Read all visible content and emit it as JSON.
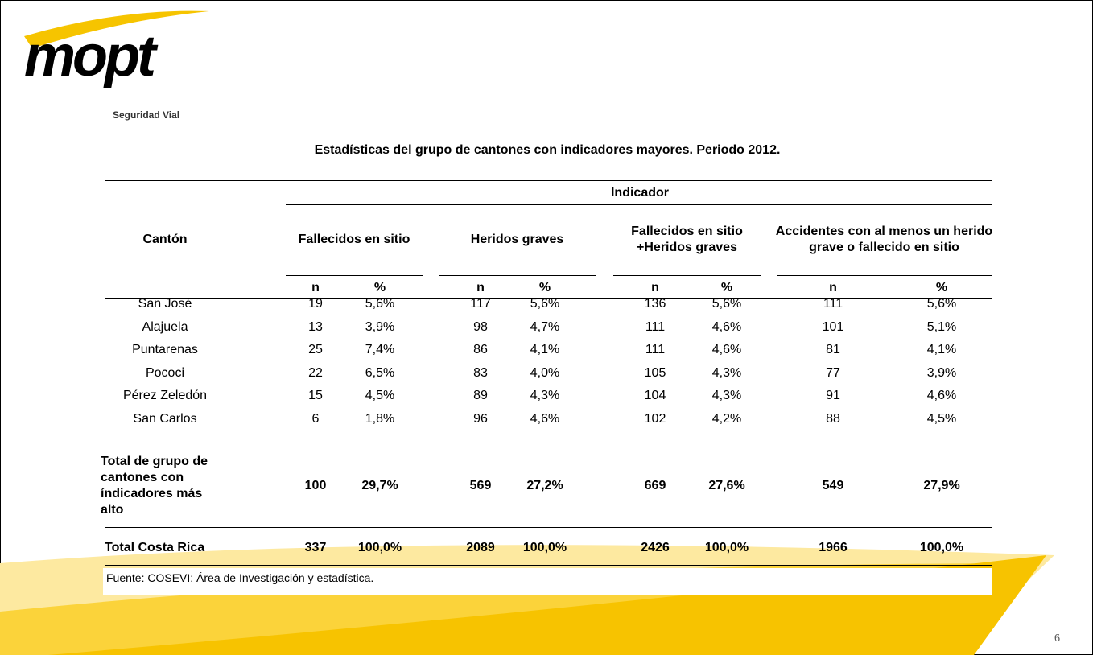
{
  "header": {
    "logo": "mopt",
    "subtitle": "Seguridad Vial"
  },
  "title": "Estadísticas del grupo de cantones con indicadores mayores. Periodo 2012.",
  "table": {
    "row_header": "Cantón",
    "group_header": "Indicador",
    "columns": [
      "Fallecidos en sitio",
      "Heridos graves",
      "Fallecidos en sitio +Heridos graves",
      "Accidentes con al menos un herido grave o fallecido en sitio"
    ],
    "subheaders": [
      "n",
      "%"
    ],
    "rows": [
      [
        "San José",
        "19",
        "5,6%",
        "117",
        "5,6%",
        "136",
        "5,6%",
        "111",
        "5,6%"
      ],
      [
        "Alajuela",
        "13",
        "3,9%",
        "98",
        "4,7%",
        "111",
        "4,6%",
        "101",
        "5,1%"
      ],
      [
        "Puntarenas",
        "25",
        "7,4%",
        "86",
        "4,1%",
        "111",
        "4,6%",
        "81",
        "4,1%"
      ],
      [
        "Pococi",
        "22",
        "6,5%",
        "83",
        "4,0%",
        "105",
        "4,3%",
        "77",
        "3,9%"
      ],
      [
        "Pérez Zeledón",
        "15",
        "4,5%",
        "89",
        "4,3%",
        "104",
        "4,3%",
        "91",
        "4,6%"
      ],
      [
        "San Carlos",
        "6",
        "1,8%",
        "96",
        "4,6%",
        "102",
        "4,2%",
        "88",
        "4,5%"
      ]
    ],
    "group_total": [
      "Total de grupo de cantones con índicadores más alto",
      "100",
      "29,7%",
      "569",
      "27,2%",
      "669",
      "27,6%",
      "549",
      "27,9%"
    ],
    "country_total": [
      "Total Costa Rica",
      "337",
      "100,0%",
      "2089",
      "100,0%",
      "2426",
      "100,0%",
      "1966",
      "100,0%"
    ],
    "footnote": "Fuente: COSEVI: Área de Investigación y estadística."
  },
  "page_number": "6"
}
